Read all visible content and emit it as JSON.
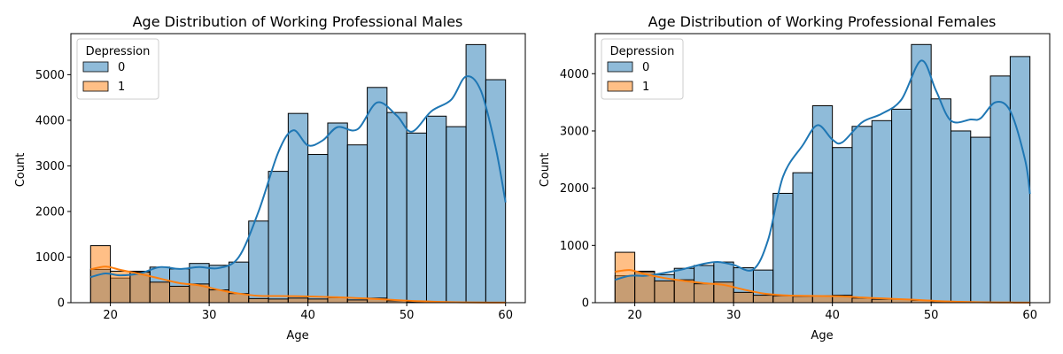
{
  "colors": {
    "series0": "#1f77b4",
    "series1": "#ff7f0e",
    "bar_edge": "#000000"
  },
  "chart_data": [
    {
      "type": "bar",
      "subtype": "histogram_with_kde",
      "title": "Age Distribution of Working Professional Males",
      "xlabel": "Age",
      "ylabel": "Count",
      "xlim": [
        16,
        62
      ],
      "ylim": [
        0,
        5900
      ],
      "xticks": [
        20,
        30,
        40,
        50,
        60
      ],
      "yticks": [
        0,
        1000,
        2000,
        3000,
        4000,
        5000
      ],
      "bin_edges": [
        18,
        20,
        22,
        24,
        26,
        28,
        30,
        32,
        34,
        36,
        38,
        40,
        42,
        44,
        46,
        48,
        50,
        52,
        54,
        56,
        58,
        60
      ],
      "legend": {
        "title": "Depression",
        "position": "top-left",
        "labels": [
          "0",
          "1"
        ]
      },
      "series": [
        {
          "name": "0",
          "values": [
            730,
            540,
            690,
            780,
            740,
            860,
            820,
            890,
            1790,
            2880,
            4150,
            3250,
            3940,
            3460,
            4720,
            4170,
            3720,
            4090,
            3860,
            5660,
            4890
          ],
          "kde": [
            [
              18,
              560
            ],
            [
              19.5,
              640
            ],
            [
              21,
              600
            ],
            [
              23,
              640
            ],
            [
              25,
              780
            ],
            [
              27,
              740
            ],
            [
              29,
              780
            ],
            [
              31,
              760
            ],
            [
              33,
              1000
            ],
            [
              35,
              2000
            ],
            [
              37,
              3300
            ],
            [
              38.5,
              3780
            ],
            [
              40,
              3450
            ],
            [
              41.5,
              3560
            ],
            [
              43,
              3850
            ],
            [
              45,
              3800
            ],
            [
              47,
              4390
            ],
            [
              49,
              4100
            ],
            [
              50.5,
              3750
            ],
            [
              52.5,
              4200
            ],
            [
              54.5,
              4450
            ],
            [
              56,
              4960
            ],
            [
              57.5,
              4650
            ],
            [
              59,
              3400
            ],
            [
              60,
              2200
            ]
          ]
        },
        {
          "name": "1",
          "values": [
            1250,
            690,
            670,
            450,
            360,
            410,
            280,
            200,
            90,
            80,
            100,
            80,
            110,
            60,
            100,
            40,
            20,
            10,
            10,
            10,
            5
          ],
          "kde": [
            [
              18,
              730
            ],
            [
              19.5,
              790
            ],
            [
              21,
              720
            ],
            [
              23,
              630
            ],
            [
              25,
              530
            ],
            [
              27,
              430
            ],
            [
              29,
              380
            ],
            [
              31,
              280
            ],
            [
              33,
              200
            ],
            [
              35,
              150
            ],
            [
              37,
              145
            ],
            [
              39,
              140
            ],
            [
              41,
              130
            ],
            [
              43,
              120
            ],
            [
              45,
              100
            ],
            [
              47,
              80
            ],
            [
              49,
              55
            ],
            [
              51,
              35
            ],
            [
              53,
              20
            ],
            [
              55,
              10
            ],
            [
              57,
              5
            ],
            [
              60,
              2
            ]
          ]
        }
      ]
    },
    {
      "type": "bar",
      "subtype": "histogram_with_kde",
      "title": "Age Distribution of Working Professional Females",
      "xlabel": "Age",
      "ylabel": "Count",
      "xlim": [
        16,
        62
      ],
      "ylim": [
        0,
        4700
      ],
      "xticks": [
        20,
        30,
        40,
        50,
        60
      ],
      "yticks": [
        0,
        1000,
        2000,
        3000,
        4000
      ],
      "bin_edges": [
        18,
        20,
        22,
        24,
        26,
        28,
        30,
        32,
        34,
        36,
        38,
        40,
        42,
        44,
        46,
        48,
        50,
        52,
        54,
        56,
        58,
        60
      ],
      "legend": {
        "title": "Depression",
        "position": "top-left",
        "labels": [
          "0",
          "1"
        ]
      },
      "series": [
        {
          "name": "0",
          "values": [
            470,
            550,
            490,
            600,
            650,
            710,
            610,
            570,
            1910,
            2270,
            3440,
            2710,
            3080,
            3180,
            3380,
            4510,
            3560,
            3000,
            2890,
            3960,
            4300
          ],
          "kde": [
            [
              18,
              400
            ],
            [
              19.5,
              470
            ],
            [
              21,
              470
            ],
            [
              23,
              520
            ],
            [
              25,
              590
            ],
            [
              27,
              680
            ],
            [
              28.5,
              710
            ],
            [
              30,
              660
            ],
            [
              32,
              580
            ],
            [
              33.5,
              1100
            ],
            [
              35,
              2200
            ],
            [
              37,
              2750
            ],
            [
              38.5,
              3100
            ],
            [
              40,
              2850
            ],
            [
              41,
              2800
            ],
            [
              43,
              3150
            ],
            [
              45,
              3300
            ],
            [
              47,
              3550
            ],
            [
              49,
              4230
            ],
            [
              50.5,
              3700
            ],
            [
              52,
              3180
            ],
            [
              54,
              3200
            ],
            [
              55,
              3220
            ],
            [
              56.5,
              3500
            ],
            [
              58,
              3350
            ],
            [
              59.5,
              2500
            ],
            [
              60,
              1900
            ]
          ]
        },
        {
          "name": "1",
          "values": [
            880,
            540,
            380,
            400,
            330,
            360,
            180,
            130,
            120,
            110,
            120,
            130,
            80,
            60,
            60,
            40,
            20,
            10,
            10,
            5,
            5
          ],
          "kde": [
            [
              18,
              540
            ],
            [
              19.5,
              570
            ],
            [
              21,
              500
            ],
            [
              23,
              430
            ],
            [
              25,
              380
            ],
            [
              27,
              340
            ],
            [
              29,
              310
            ],
            [
              31,
              230
            ],
            [
              33,
              160
            ],
            [
              35,
              130
            ],
            [
              37,
              120
            ],
            [
              39,
              115
            ],
            [
              41,
              110
            ],
            [
              43,
              90
            ],
            [
              45,
              75
            ],
            [
              47,
              60
            ],
            [
              49,
              45
            ],
            [
              51,
              25
            ],
            [
              53,
              15
            ],
            [
              55,
              8
            ],
            [
              57,
              4
            ],
            [
              60,
              2
            ]
          ]
        }
      ]
    }
  ]
}
